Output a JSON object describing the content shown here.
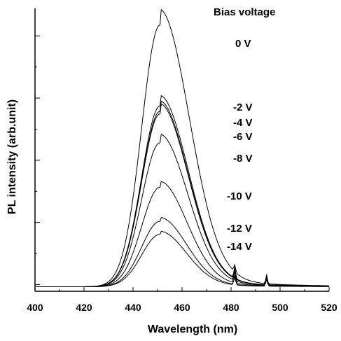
{
  "chart_data": {
    "type": "line",
    "title": "",
    "xlabel": "Wavelength (nm)",
    "ylabel": "PL intensity (arb.unit)",
    "xlim": [
      400,
      520
    ],
    "ylim": [
      0,
      1
    ],
    "x_ticks": [
      "400",
      "420",
      "440",
      "460",
      "480",
      "500",
      "520"
    ],
    "y_ticks_labeled": false,
    "grid": false,
    "legend_title": "Bias voltage",
    "legend_placement": "top-right, labels stacked beside peaks",
    "peak_wavelength": 451,
    "spike_wavelengths": [
      481.5,
      494.5
    ],
    "series": [
      {
        "name": "0 V",
        "peak": 1.0,
        "values_note": "highest, broadest emission"
      },
      {
        "name": "-2 V",
        "peak": 0.69
      },
      {
        "name": "-4 V",
        "peak": 0.67
      },
      {
        "name": "-6 V",
        "peak": 0.66
      },
      {
        "name": "-8 V",
        "peak": 0.55
      },
      {
        "name": "-10 V",
        "peak": 0.38
      },
      {
        "name": "-12 V",
        "peak": 0.25
      },
      {
        "name": "-14 V",
        "peak": 0.2
      }
    ]
  }
}
